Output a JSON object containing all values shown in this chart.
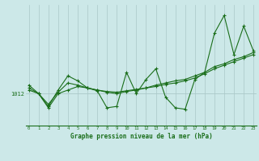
{
  "title": "Graphe pression niveau de la mer (hPa)",
  "background_color": "#cce8e8",
  "line_color": "#1a6e1a",
  "grid_color": "#aac8c8",
  "ylabel_text": "1012",
  "ylabel_value": 1012,
  "x_ticks": [
    0,
    1,
    2,
    3,
    4,
    5,
    6,
    7,
    8,
    9,
    10,
    11,
    12,
    13,
    14,
    15,
    16,
    17,
    18,
    19,
    20,
    21,
    22,
    23
  ],
  "series1": [
    1013.2,
    1012.0,
    1010.2,
    1012.5,
    1014.5,
    1013.8,
    1012.8,
    1012.4,
    1010.0,
    1010.2,
    1015.0,
    1012.0,
    1014.0,
    1015.5,
    1011.5,
    1010.0,
    1009.8,
    1014.0,
    1015.0,
    1020.5,
    1023.0,
    1017.5,
    1021.5,
    1018.0
  ],
  "series2": [
    1012.8,
    1012.0,
    1010.0,
    1012.0,
    1012.5,
    1013.0,
    1012.8,
    1012.5,
    1012.3,
    1012.2,
    1012.4,
    1012.6,
    1012.8,
    1013.2,
    1013.5,
    1013.8,
    1014.0,
    1014.5,
    1015.0,
    1015.8,
    1016.2,
    1016.8,
    1017.2,
    1017.8
  ],
  "series3": [
    1012.5,
    1012.0,
    1010.5,
    1012.2,
    1013.5,
    1013.2,
    1012.8,
    1012.5,
    1012.2,
    1012.0,
    1012.3,
    1012.5,
    1012.8,
    1013.0,
    1013.3,
    1013.5,
    1013.8,
    1014.2,
    1014.8,
    1015.5,
    1016.0,
    1016.5,
    1017.0,
    1017.5
  ],
  "ylim": [
    1007.5,
    1024.5
  ],
  "xlim": [
    -0.3,
    23.3
  ]
}
